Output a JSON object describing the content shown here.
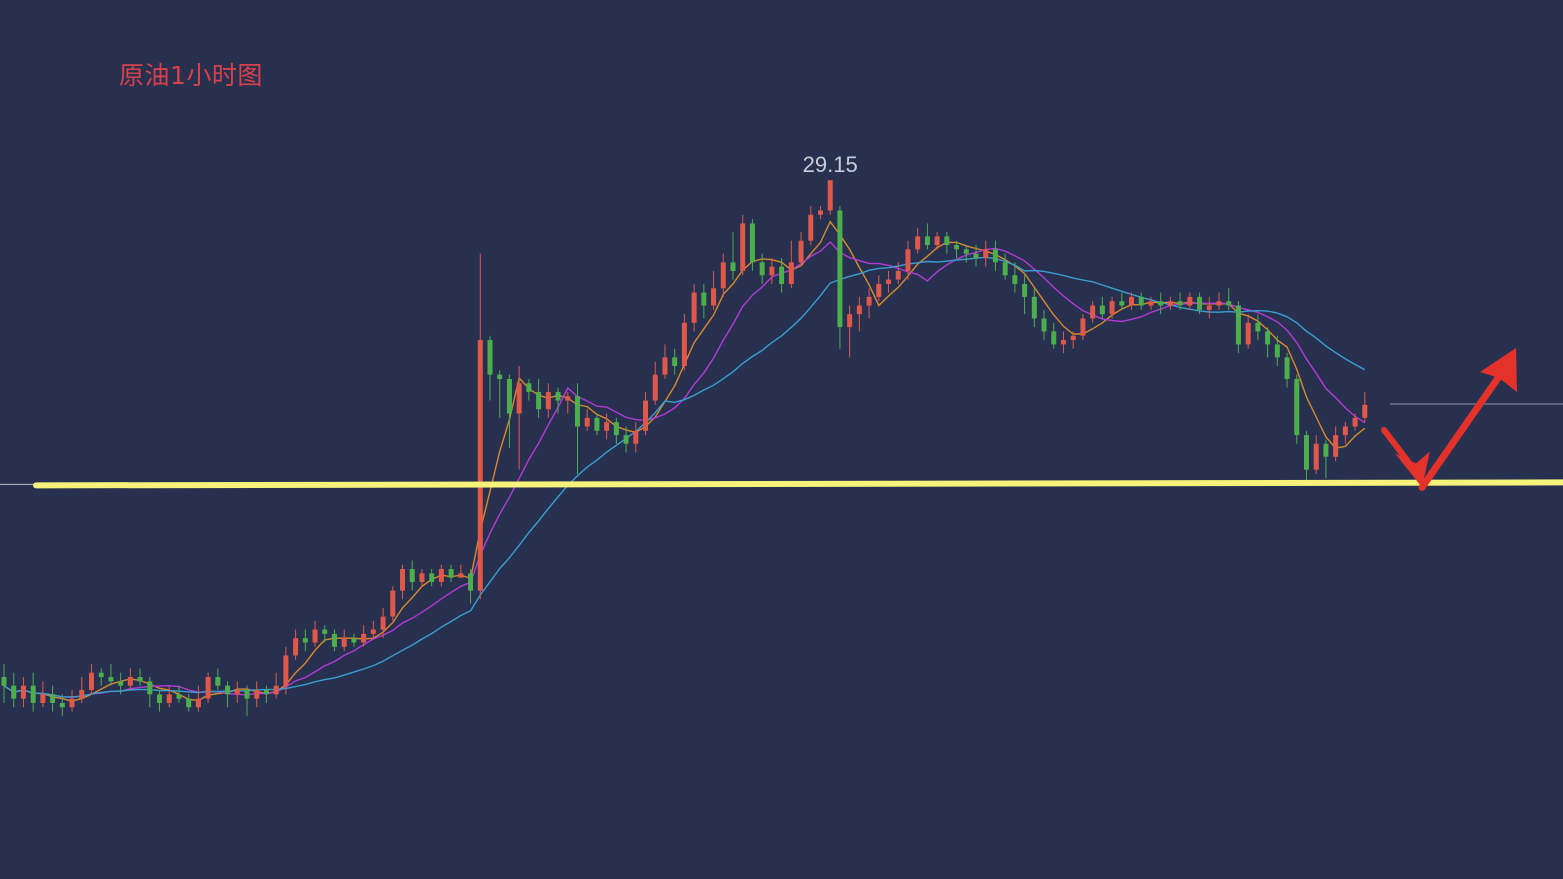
{
  "chart_data": {
    "type": "candlestick",
    "title": "原油1小时图",
    "peak_label": "29.15",
    "colors": {
      "background": "#283050",
      "title": "#d8414a",
      "up_candle": "#e0584a",
      "down_candle": "#4cae4c",
      "ma_fast": "#d88a2a",
      "ma_mid": "#b43ad6",
      "ma_slow": "#3a9ed0",
      "support_line": "#f5f37a",
      "arrows": "#e4322b",
      "reference_line": "#8e93a6"
    },
    "price_axis": {
      "min": 22.0,
      "max": 29.5
    },
    "support_level": 25.63,
    "reference_level": 26.56,
    "candles": [
      [
        0,
        23.4,
        23.3,
        23.55,
        23.1
      ],
      [
        1,
        23.3,
        23.15,
        23.45,
        23.05
      ],
      [
        2,
        23.15,
        23.3,
        23.4,
        23.05
      ],
      [
        3,
        23.3,
        23.1,
        23.45,
        23.0
      ],
      [
        4,
        23.1,
        23.2,
        23.35,
        23.05
      ],
      [
        5,
        23.2,
        23.1,
        23.3,
        23.0
      ],
      [
        6,
        23.1,
        23.05,
        23.2,
        22.95
      ],
      [
        7,
        23.05,
        23.15,
        23.25,
        23.0
      ],
      [
        8,
        23.15,
        23.25,
        23.4,
        23.1
      ],
      [
        9,
        23.25,
        23.45,
        23.55,
        23.2
      ],
      [
        10,
        23.45,
        23.4,
        23.5,
        23.3
      ],
      [
        11,
        23.4,
        23.35,
        23.55,
        23.3
      ],
      [
        12,
        23.35,
        23.3,
        23.45,
        23.2
      ],
      [
        13,
        23.3,
        23.4,
        23.5,
        23.25
      ],
      [
        14,
        23.4,
        23.35,
        23.5,
        23.3
      ],
      [
        15,
        23.35,
        23.2,
        23.4,
        23.05
      ],
      [
        16,
        23.2,
        23.1,
        23.25,
        23.0
      ],
      [
        17,
        23.1,
        23.2,
        23.3,
        23.05
      ],
      [
        18,
        23.2,
        23.15,
        23.3,
        23.1
      ],
      [
        19,
        23.15,
        23.05,
        23.2,
        23.0
      ],
      [
        20,
        23.05,
        23.15,
        23.3,
        23.0
      ],
      [
        21,
        23.15,
        23.4,
        23.45,
        23.1
      ],
      [
        22,
        23.4,
        23.3,
        23.5,
        23.25
      ],
      [
        23,
        23.3,
        23.2,
        23.35,
        23.05
      ],
      [
        24,
        23.2,
        23.25,
        23.35,
        23.1
      ],
      [
        25,
        23.25,
        23.15,
        23.3,
        22.95
      ],
      [
        26,
        23.15,
        23.25,
        23.35,
        23.05
      ],
      [
        27,
        23.25,
        23.2,
        23.3,
        23.1
      ],
      [
        28,
        23.2,
        23.3,
        23.45,
        23.15
      ],
      [
        29,
        23.3,
        23.65,
        23.75,
        23.2
      ],
      [
        30,
        23.65,
        23.85,
        23.95,
        23.6
      ],
      [
        31,
        23.85,
        23.8,
        23.95,
        23.7
      ],
      [
        32,
        23.8,
        23.95,
        24.05,
        23.75
      ],
      [
        33,
        23.95,
        23.9,
        24.0,
        23.8
      ],
      [
        34,
        23.9,
        23.75,
        23.95,
        23.7
      ],
      [
        35,
        23.75,
        23.85,
        23.95,
        23.7
      ],
      [
        36,
        23.85,
        23.8,
        23.9,
        23.75
      ],
      [
        37,
        23.8,
        23.9,
        24.0,
        23.75
      ],
      [
        38,
        23.9,
        23.95,
        24.05,
        23.85
      ],
      [
        39,
        23.95,
        24.1,
        24.2,
        23.85
      ],
      [
        40,
        24.1,
        24.4,
        24.45,
        24.05
      ],
      [
        41,
        24.4,
        24.65,
        24.7,
        24.3
      ],
      [
        42,
        24.65,
        24.5,
        24.75,
        24.4
      ],
      [
        43,
        24.5,
        24.6,
        24.65,
        24.45
      ],
      [
        44,
        24.6,
        24.5,
        24.65,
        24.45
      ],
      [
        45,
        24.5,
        24.65,
        24.7,
        24.45
      ],
      [
        46,
        24.65,
        24.55,
        24.7,
        24.5
      ],
      [
        47,
        24.55,
        24.6,
        24.7,
        24.55
      ],
      [
        48,
        24.6,
        24.4,
        24.65,
        24.25
      ],
      [
        49,
        24.4,
        27.3,
        28.3,
        24.3
      ],
      [
        50,
        27.3,
        26.9,
        27.35,
        26.6
      ],
      [
        51,
        26.9,
        26.85,
        26.95,
        26.4
      ],
      [
        52,
        26.85,
        26.45,
        26.9,
        26.05
      ],
      [
        53,
        26.45,
        26.8,
        27.0,
        25.8
      ],
      [
        54,
        26.8,
        26.7,
        26.85,
        26.6
      ],
      [
        55,
        26.7,
        26.5,
        26.85,
        26.4
      ],
      [
        56,
        26.5,
        26.7,
        26.8,
        26.4
      ],
      [
        57,
        26.7,
        26.6,
        26.75,
        26.45
      ],
      [
        58,
        26.6,
        26.65,
        26.7,
        26.45
      ],
      [
        59,
        26.65,
        26.3,
        26.8,
        25.75
      ],
      [
        60,
        26.3,
        26.4,
        26.5,
        26.25
      ],
      [
        61,
        26.4,
        26.25,
        26.45,
        26.2
      ],
      [
        62,
        26.25,
        26.35,
        26.45,
        26.15
      ],
      [
        63,
        26.35,
        26.2,
        26.4,
        26.1
      ],
      [
        64,
        26.2,
        26.1,
        26.3,
        26.0
      ],
      [
        65,
        26.1,
        26.25,
        26.35,
        26.0
      ],
      [
        66,
        26.25,
        26.6,
        26.7,
        26.2
      ],
      [
        67,
        26.6,
        26.9,
        27.05,
        26.55
      ],
      [
        68,
        26.9,
        27.1,
        27.25,
        26.85
      ],
      [
        69,
        27.1,
        27.0,
        27.2,
        26.9
      ],
      [
        70,
        27.0,
        27.5,
        27.6,
        26.95
      ],
      [
        71,
        27.5,
        27.85,
        27.95,
        27.4
      ],
      [
        72,
        27.85,
        27.7,
        27.95,
        27.55
      ],
      [
        73,
        27.7,
        27.9,
        28.1,
        27.65
      ],
      [
        74,
        27.9,
        28.2,
        28.3,
        27.8
      ],
      [
        75,
        28.2,
        28.1,
        28.55,
        28.0
      ],
      [
        76,
        28.1,
        28.65,
        28.75,
        28.05
      ],
      [
        77,
        28.65,
        28.2,
        28.7,
        28.1
      ],
      [
        78,
        28.2,
        28.05,
        28.3,
        27.95
      ],
      [
        79,
        28.05,
        28.15,
        28.25,
        27.95
      ],
      [
        80,
        28.15,
        27.95,
        28.25,
        27.85
      ],
      [
        81,
        27.95,
        28.2,
        28.45,
        27.9
      ],
      [
        82,
        28.2,
        28.45,
        28.55,
        28.15
      ],
      [
        83,
        28.45,
        28.75,
        28.85,
        28.4
      ],
      [
        84,
        28.75,
        28.8,
        28.85,
        28.7
      ],
      [
        85,
        28.8,
        29.15,
        29.15,
        28.75
      ],
      [
        86,
        28.8,
        27.45,
        28.85,
        27.2
      ],
      [
        87,
        27.45,
        27.6,
        27.7,
        27.1
      ],
      [
        88,
        27.6,
        27.7,
        27.8,
        27.4
      ],
      [
        89,
        27.7,
        27.8,
        27.9,
        27.55
      ],
      [
        90,
        27.8,
        27.95,
        28.05,
        27.75
      ],
      [
        91,
        27.95,
        28.0,
        28.1,
        27.85
      ],
      [
        92,
        28.0,
        28.1,
        28.2,
        27.95
      ],
      [
        93,
        28.1,
        28.35,
        28.45,
        28.0
      ],
      [
        94,
        28.35,
        28.5,
        28.6,
        28.3
      ],
      [
        95,
        28.5,
        28.4,
        28.65,
        28.35
      ],
      [
        96,
        28.4,
        28.5,
        28.55,
        28.35
      ],
      [
        97,
        28.5,
        28.4,
        28.55,
        28.3
      ],
      [
        98,
        28.4,
        28.35,
        28.45,
        28.25
      ],
      [
        99,
        28.35,
        28.3,
        28.4,
        28.2
      ],
      [
        100,
        28.3,
        28.25,
        28.4,
        28.15
      ],
      [
        101,
        28.25,
        28.35,
        28.45,
        28.15
      ],
      [
        102,
        28.35,
        28.2,
        28.45,
        28.1
      ],
      [
        103,
        28.2,
        28.05,
        28.3,
        28.0
      ],
      [
        104,
        28.05,
        27.95,
        28.2,
        27.85
      ],
      [
        105,
        27.95,
        27.8,
        28.05,
        27.6
      ],
      [
        106,
        27.8,
        27.55,
        27.9,
        27.45
      ],
      [
        107,
        27.55,
        27.4,
        27.65,
        27.3
      ],
      [
        108,
        27.4,
        27.25,
        27.5,
        27.2
      ],
      [
        109,
        27.25,
        27.3,
        27.4,
        27.15
      ],
      [
        110,
        27.3,
        27.35,
        27.4,
        27.2
      ],
      [
        111,
        27.35,
        27.55,
        27.6,
        27.3
      ],
      [
        112,
        27.55,
        27.7,
        27.75,
        27.5
      ],
      [
        113,
        27.7,
        27.6,
        27.8,
        27.55
      ],
      [
        114,
        27.6,
        27.75,
        27.8,
        27.55
      ],
      [
        115,
        27.75,
        27.7,
        27.85,
        27.65
      ],
      [
        116,
        27.7,
        27.8,
        27.85,
        27.65
      ],
      [
        117,
        27.8,
        27.7,
        27.85,
        27.65
      ],
      [
        118,
        27.7,
        27.75,
        27.8,
        27.65
      ],
      [
        119,
        27.75,
        27.7,
        27.85,
        27.6
      ],
      [
        120,
        27.7,
        27.75,
        27.8,
        27.65
      ],
      [
        121,
        27.75,
        27.7,
        27.85,
        27.65
      ],
      [
        122,
        27.7,
        27.8,
        27.85,
        27.65
      ],
      [
        123,
        27.8,
        27.65,
        27.85,
        27.6
      ],
      [
        124,
        27.65,
        27.7,
        27.8,
        27.55
      ],
      [
        125,
        27.7,
        27.75,
        27.85,
        27.65
      ],
      [
        126,
        27.75,
        27.7,
        27.9,
        27.65
      ],
      [
        127,
        27.7,
        27.25,
        27.75,
        27.15
      ],
      [
        128,
        27.25,
        27.5,
        27.6,
        27.2
      ],
      [
        129,
        27.5,
        27.4,
        27.6,
        27.3
      ],
      [
        130,
        27.4,
        27.25,
        27.45,
        27.1
      ],
      [
        131,
        27.25,
        27.1,
        27.35,
        27.0
      ],
      [
        132,
        27.1,
        26.85,
        27.15,
        26.75
      ],
      [
        133,
        26.85,
        26.2,
        26.9,
        26.1
      ],
      [
        134,
        26.2,
        25.8,
        26.25,
        25.65
      ],
      [
        135,
        25.8,
        26.1,
        26.2,
        25.75
      ],
      [
        136,
        26.1,
        25.95,
        26.15,
        25.7
      ],
      [
        137,
        25.95,
        26.2,
        26.3,
        25.9
      ],
      [
        138,
        26.2,
        26.3,
        26.35,
        26.1
      ],
      [
        139,
        26.3,
        26.4,
        26.45,
        26.25
      ],
      [
        140,
        26.4,
        26.55,
        26.7,
        26.35
      ]
    ]
  }
}
